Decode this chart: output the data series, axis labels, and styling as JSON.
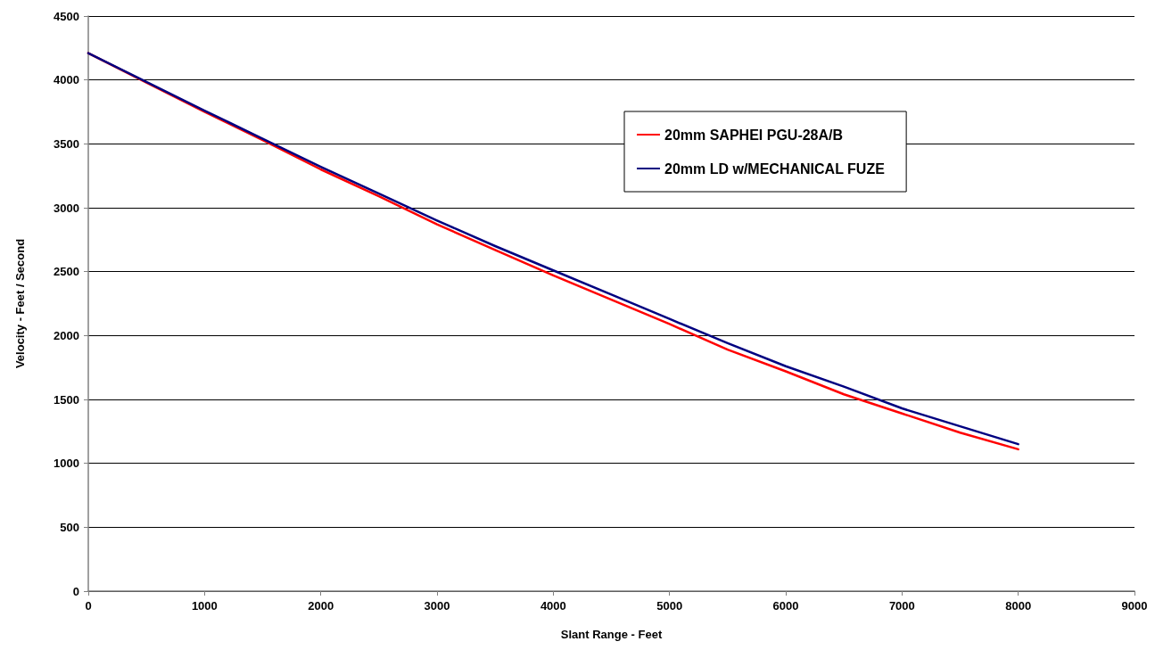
{
  "chart_data": {
    "type": "line",
    "xlabel": "Slant Range - Feet",
    "ylabel": "Velocity - Feet / Second",
    "x": [
      0,
      500,
      1000,
      1500,
      2000,
      2500,
      3000,
      3500,
      4000,
      4500,
      5000,
      5500,
      6000,
      6500,
      7000,
      7500,
      8000
    ],
    "series": [
      {
        "name": "20mm SAPHEI PGU-28A/B",
        "color": "#ff0000",
        "values": [
          4210,
          3980,
          3750,
          3530,
          3300,
          3090,
          2870,
          2670,
          2470,
          2280,
          2090,
          1890,
          1720,
          1540,
          1390,
          1240,
          1110
        ]
      },
      {
        "name": "20mm LD w/MECHANICAL FUZE",
        "color": "#000080",
        "values": [
          4210,
          3985,
          3760,
          3540,
          3320,
          3110,
          2900,
          2700,
          2510,
          2320,
          2130,
          1940,
          1760,
          1600,
          1430,
          1290,
          1150
        ]
      }
    ],
    "xlim": [
      0,
      9000
    ],
    "xticks": [
      0,
      1000,
      2000,
      3000,
      4000,
      5000,
      6000,
      7000,
      8000,
      9000
    ],
    "ylim": [
      0,
      4500
    ],
    "yticks": [
      0,
      500,
      1000,
      1500,
      2000,
      2500,
      3000,
      3500,
      4000,
      4500
    ],
    "grid": "y",
    "legend": "top right",
    "marker": "none",
    "line_style": "solid"
  }
}
